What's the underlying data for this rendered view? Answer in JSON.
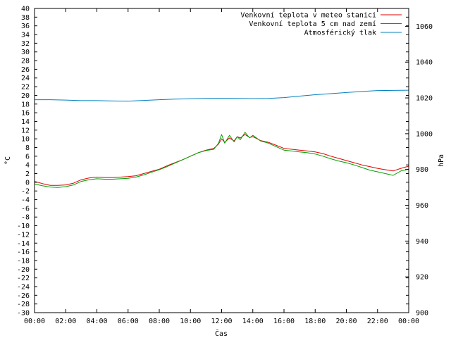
{
  "chart_data": {
    "type": "line",
    "xlabel": "Čas",
    "ylabel_left": "°C",
    "ylabel_right": "hPa",
    "x_ticks": [
      "00:00",
      "02:00",
      "04:00",
      "06:00",
      "08:00",
      "10:00",
      "12:00",
      "14:00",
      "16:00",
      "18:00",
      "20:00",
      "22:00",
      "00:00"
    ],
    "x_range_hours": [
      0,
      24
    ],
    "ylim_left": [
      -30,
      40
    ],
    "ylim_right": [
      900,
      1070
    ],
    "y_left_ticks": [
      40,
      38,
      36,
      34,
      32,
      30,
      28,
      26,
      24,
      22,
      20,
      18,
      16,
      14,
      12,
      10,
      8,
      6,
      4,
      2,
      0,
      -2,
      -4,
      -6,
      -8,
      -10,
      -12,
      -14,
      -16,
      -18,
      -20,
      -22,
      -24,
      -26,
      -28,
      -30
    ],
    "y_right_ticks": [
      1060,
      1040,
      1020,
      1000,
      980,
      960,
      940,
      920,
      900
    ],
    "grid": false,
    "legend_position": "top-right",
    "series": [
      {
        "name": "Venkovní teplota v meteo stanici",
        "axis": "left",
        "color": "#e00000",
        "x": [
          0,
          0.5,
          1,
          1.5,
          2,
          2.5,
          3,
          3.5,
          4,
          4.5,
          5,
          5.5,
          6,
          6.5,
          7,
          7.5,
          8,
          8.5,
          9,
          9.5,
          10,
          10.5,
          11,
          11.5,
          11.8,
          12,
          12.2,
          12.5,
          12.8,
          13,
          13.2,
          13.5,
          13.8,
          14,
          14.5,
          15,
          15.5,
          16,
          16.5,
          17,
          17.5,
          18,
          18.5,
          19,
          19.5,
          20,
          20.5,
          21,
          21.5,
          22,
          22.5,
          23,
          23.5,
          24
        ],
        "y": [
          0.2,
          -0.3,
          -0.7,
          -0.7,
          -0.6,
          -0.2,
          0.6,
          1.0,
          1.2,
          1.1,
          1.1,
          1.2,
          1.3,
          1.5,
          2.0,
          2.5,
          3.0,
          3.8,
          4.5,
          5.2,
          6.0,
          6.8,
          7.4,
          7.8,
          8.8,
          10.0,
          9.2,
          10.2,
          9.5,
          10.5,
          10.2,
          11.0,
          10.3,
          10.5,
          9.6,
          9.2,
          8.5,
          7.8,
          7.6,
          7.4,
          7.2,
          7.0,
          6.6,
          6.0,
          5.5,
          5.0,
          4.5,
          4.0,
          3.6,
          3.2,
          2.9,
          2.6,
          3.2,
          3.7
        ]
      },
      {
        "name": "Venkovní teplota 5 cm nad zemí",
        "axis": "left",
        "color": "#00a000",
        "x": [
          0,
          0.5,
          1,
          1.5,
          2,
          2.5,
          3,
          3.5,
          4,
          4.5,
          5,
          5.5,
          6,
          6.5,
          7,
          7.5,
          8,
          8.5,
          9,
          9.5,
          10,
          10.5,
          11,
          11.5,
          11.8,
          12,
          12.2,
          12.5,
          12.8,
          13,
          13.2,
          13.5,
          13.8,
          14,
          14.5,
          15,
          15.5,
          16,
          16.5,
          17,
          17.5,
          18,
          18.5,
          19,
          19.5,
          20,
          20.5,
          21,
          21.5,
          22,
          22.5,
          23,
          23.5,
          24
        ],
        "y": [
          -0.4,
          -0.8,
          -1.1,
          -1.2,
          -1.0,
          -0.6,
          0.2,
          0.6,
          0.8,
          0.7,
          0.7,
          0.8,
          0.9,
          1.2,
          1.7,
          2.3,
          2.9,
          3.6,
          4.4,
          5.2,
          6.0,
          6.8,
          7.3,
          7.6,
          9.0,
          11.0,
          9.0,
          10.8,
          9.3,
          10.5,
          9.8,
          11.5,
          10.2,
          10.8,
          9.5,
          9.0,
          8.2,
          7.4,
          7.2,
          7.0,
          6.8,
          6.5,
          6.0,
          5.4,
          4.9,
          4.5,
          4.0,
          3.4,
          2.8,
          2.4,
          2.0,
          1.6,
          2.6,
          3.0
        ]
      },
      {
        "name": "Atmosférický tlak",
        "axis": "right",
        "color": "#0080c0",
        "x": [
          0,
          1,
          2,
          3,
          4,
          5,
          6,
          7,
          8,
          9,
          10,
          11,
          12,
          13,
          14,
          15,
          16,
          17,
          18,
          19,
          20,
          21,
          22,
          23,
          24
        ],
        "y": [
          1019,
          1019,
          1018.8,
          1018.5,
          1018.5,
          1018.3,
          1018.2,
          1018.6,
          1019,
          1019.3,
          1019.5,
          1019.7,
          1019.8,
          1019.7,
          1019.6,
          1019.7,
          1020.2,
          1021,
          1021.8,
          1022.4,
          1023,
          1023.6,
          1024.1,
          1024.2,
          1024.3
        ]
      }
    ]
  }
}
